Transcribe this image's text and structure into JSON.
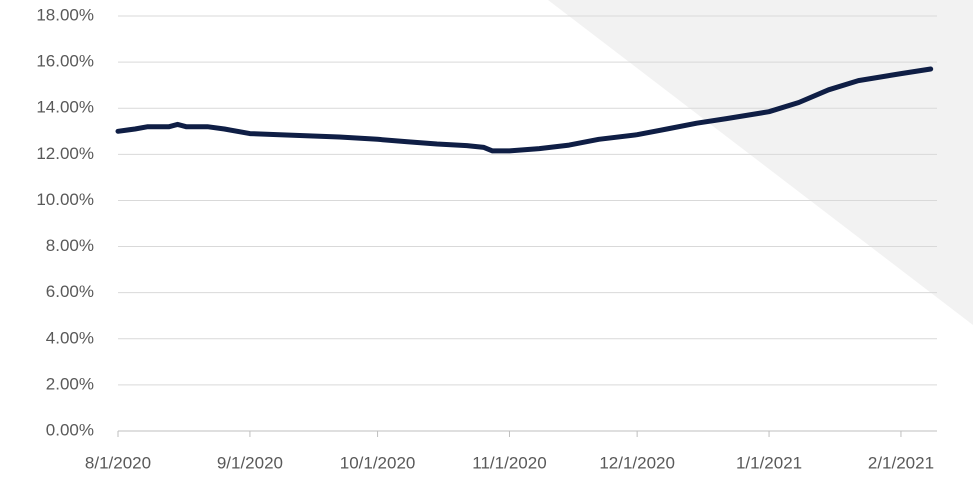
{
  "chart_data": {
    "type": "line",
    "x": [
      "8/1/2020",
      "8/5/2020",
      "8/8/2020",
      "8/13/2020",
      "8/15/2020",
      "8/17/2020",
      "8/22/2020",
      "8/26/2020",
      "9/1/2020",
      "9/8/2020",
      "9/15/2020",
      "9/22/2020",
      "10/1/2020",
      "10/8/2020",
      "10/15/2020",
      "10/22/2020",
      "10/26/2020",
      "10/28/2020",
      "11/1/2020",
      "11/8/2020",
      "11/15/2020",
      "11/22/2020",
      "12/1/2020",
      "12/8/2020",
      "12/15/2020",
      "12/22/2020",
      "1/1/2021",
      "1/8/2021",
      "1/15/2021",
      "1/22/2021",
      "2/1/2021",
      "2/8/2021"
    ],
    "series": [
      {
        "color": "#0f1e45",
        "values": [
          13.0,
          13.1,
          13.2,
          13.2,
          13.3,
          13.2,
          13.2,
          13.1,
          12.9,
          12.85,
          12.8,
          12.75,
          12.65,
          12.55,
          12.45,
          12.38,
          12.3,
          12.15,
          12.15,
          12.25,
          12.4,
          12.65,
          12.85,
          13.1,
          13.35,
          13.55,
          13.85,
          14.25,
          14.8,
          15.2,
          15.5,
          15.7
        ]
      }
    ],
    "xlim": [
      "8/1/2020",
      "2/9/2021"
    ],
    "xticks": [
      "8/1/2020",
      "9/1/2020",
      "10/1/2020",
      "11/1/2020",
      "12/1/2020",
      "1/1/2021",
      "2/1/2021"
    ],
    "ylim": [
      0,
      18
    ],
    "yticks": [
      {
        "value": 0,
        "label": "0.00%"
      },
      {
        "value": 2,
        "label": "2.00%"
      },
      {
        "value": 4,
        "label": "4.00%"
      },
      {
        "value": 6,
        "label": "6.00%"
      },
      {
        "value": 8,
        "label": "8.00%"
      },
      {
        "value": 10,
        "label": "10.00%"
      },
      {
        "value": 12,
        "label": "12.00%"
      },
      {
        "value": 14,
        "label": "14.00%"
      },
      {
        "value": 16,
        "label": "16.00%"
      },
      {
        "value": 18,
        "label": "18.00%"
      }
    ],
    "grid": true
  }
}
